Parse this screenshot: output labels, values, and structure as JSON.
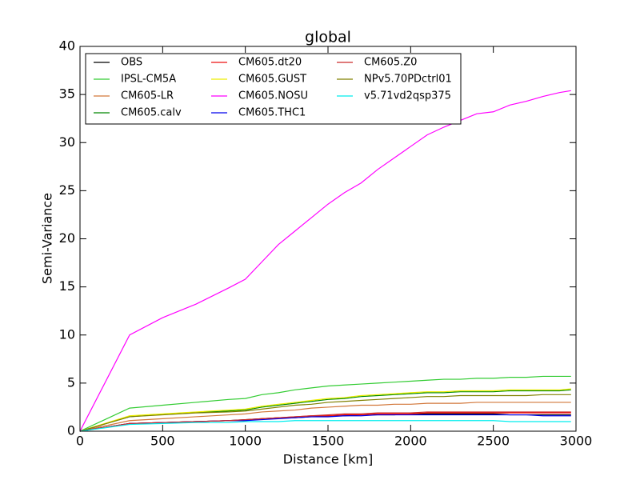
{
  "chart_data": {
    "type": "line",
    "title": "global",
    "x_label": "Distance [km]",
    "y_label": "Semi-Variance",
    "x": [
      0,
      300,
      500,
      700,
      900,
      1000,
      1100,
      1200,
      1300,
      1400,
      1500,
      1600,
      1700,
      1800,
      1900,
      2000,
      2100,
      2200,
      2300,
      2400,
      2500,
      2600,
      2700,
      2800,
      2900,
      2970
    ],
    "xlim": [
      0,
      3000
    ],
    "xticks": [
      0,
      500,
      1000,
      1500,
      2000,
      2500,
      3000
    ],
    "ylim": [
      0,
      40
    ],
    "yticks": [
      0,
      5,
      10,
      15,
      20,
      25,
      30,
      35,
      40
    ],
    "legend_position": "upper-left",
    "series": [
      {
        "name": "OBS",
        "color": "#000000",
        "values": [
          0,
          0.8,
          0.9,
          1.0,
          1.1,
          1.2,
          1.3,
          1.4,
          1.4,
          1.5,
          1.6,
          1.6,
          1.7,
          1.7,
          1.7,
          1.8,
          1.8,
          1.8,
          1.8,
          1.8,
          1.8,
          1.7,
          1.7,
          1.7,
          1.7,
          1.7
        ]
      },
      {
        "name": "IPSL-CM5A",
        "color": "#33cc33",
        "values": [
          0,
          2.4,
          2.7,
          3.0,
          3.3,
          3.4,
          3.8,
          4.0,
          4.3,
          4.5,
          4.7,
          4.8,
          4.9,
          5.0,
          5.1,
          5.2,
          5.3,
          5.4,
          5.4,
          5.5,
          5.5,
          5.6,
          5.6,
          5.7,
          5.7,
          5.7
        ]
      },
      {
        "name": "CM605-LR",
        "color": "#d2773a",
        "values": [
          0,
          1.1,
          1.3,
          1.5,
          1.7,
          1.8,
          2.0,
          2.1,
          2.2,
          2.4,
          2.5,
          2.6,
          2.7,
          2.7,
          2.8,
          2.8,
          2.9,
          2.9,
          2.9,
          3.0,
          3.0,
          3.0,
          3.0,
          3.0,
          3.0,
          3.0
        ]
      },
      {
        "name": "CM605.calv",
        "color": "#008800",
        "values": [
          0,
          1.5,
          1.75,
          1.95,
          2.1,
          2.2,
          2.5,
          2.7,
          2.9,
          3.1,
          3.3,
          3.4,
          3.6,
          3.7,
          3.8,
          3.9,
          4.0,
          4.0,
          4.1,
          4.1,
          4.1,
          4.2,
          4.2,
          4.2,
          4.2,
          4.3
        ]
      },
      {
        "name": "CM605.dt20",
        "color": "#ee1111",
        "values": [
          0,
          0.8,
          0.9,
          1.0,
          1.1,
          1.1,
          1.3,
          1.4,
          1.5,
          1.6,
          1.6,
          1.7,
          1.7,
          1.8,
          1.8,
          1.8,
          1.9,
          1.9,
          1.9,
          1.9,
          1.9,
          1.9,
          1.9,
          1.9,
          1.9,
          1.9
        ]
      },
      {
        "name": "CM605.GUST",
        "color": "#eeee00",
        "values": [
          0,
          1.6,
          1.8,
          2.0,
          2.2,
          2.3,
          2.6,
          2.8,
          3.0,
          3.2,
          3.4,
          3.5,
          3.7,
          3.8,
          3.9,
          4.0,
          4.1,
          4.1,
          4.2,
          4.2,
          4.2,
          4.3,
          4.3,
          4.3,
          4.3,
          4.4
        ]
      },
      {
        "name": "CM605.NOSU",
        "color": "#ff00ff",
        "values": [
          0,
          10.0,
          11.8,
          13.2,
          14.9,
          15.8,
          17.6,
          19.4,
          20.8,
          22.2,
          23.6,
          24.8,
          25.8,
          27.2,
          28.4,
          29.6,
          30.8,
          31.6,
          32.3,
          33.0,
          33.2,
          33.9,
          34.3,
          34.8,
          35.2,
          35.4
        ]
      },
      {
        "name": "CM605.THC1",
        "color": "#0000ee",
        "values": [
          0,
          0.8,
          0.9,
          1.0,
          1.1,
          1.1,
          1.2,
          1.3,
          1.4,
          1.5,
          1.5,
          1.6,
          1.6,
          1.7,
          1.7,
          1.7,
          1.7,
          1.7,
          1.7,
          1.7,
          1.7,
          1.7,
          1.7,
          1.6,
          1.6,
          1.6
        ]
      },
      {
        "name": "CM605.Z0",
        "color": "#cc2a2a",
        "values": [
          0,
          0.8,
          0.9,
          1.0,
          1.1,
          1.2,
          1.3,
          1.4,
          1.5,
          1.6,
          1.7,
          1.8,
          1.8,
          1.9,
          1.9,
          1.9,
          2.0,
          2.0,
          2.0,
          2.0,
          2.0,
          2.0,
          2.0,
          2.0,
          2.0,
          2.0
        ]
      },
      {
        "name": "NPv5.70PDctrl01",
        "color": "#808000",
        "values": [
          0,
          1.5,
          1.7,
          1.9,
          2.0,
          2.1,
          2.3,
          2.5,
          2.7,
          2.8,
          3.0,
          3.1,
          3.2,
          3.3,
          3.4,
          3.5,
          3.6,
          3.6,
          3.7,
          3.7,
          3.7,
          3.7,
          3.7,
          3.8,
          3.8,
          3.8
        ]
      },
      {
        "name": "v5.71vd2qsp375",
        "color": "#00eeee",
        "values": [
          0,
          0.7,
          0.8,
          0.9,
          0.9,
          1.0,
          1.0,
          1.0,
          1.1,
          1.1,
          1.1,
          1.1,
          1.1,
          1.1,
          1.1,
          1.1,
          1.1,
          1.1,
          1.1,
          1.1,
          1.1,
          1.0,
          1.0,
          1.0,
          1.0,
          1.0
        ]
      }
    ]
  }
}
